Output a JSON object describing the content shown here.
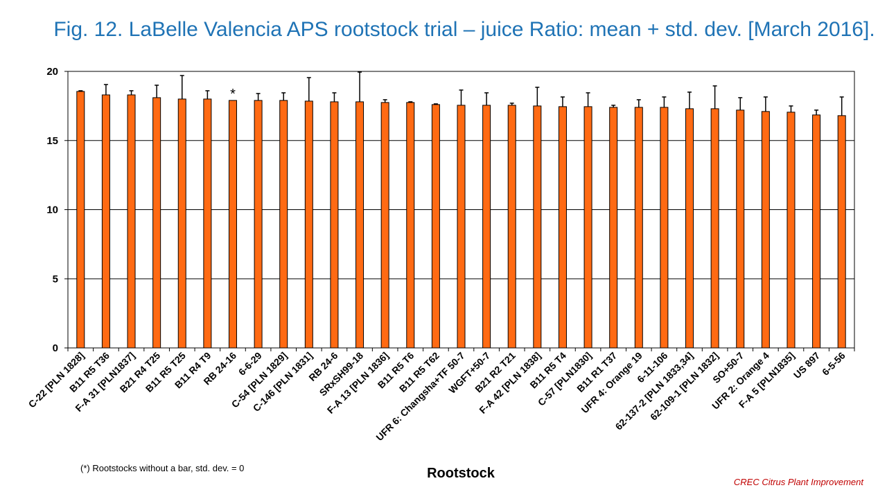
{
  "chart_data": {
    "type": "bar",
    "title": "Fig. 12. LaBelle Valencia APS rootstock trial – juice Ratio: mean + std. dev. [March 2016].",
    "xlabel": "Rootstock",
    "ylabel": "",
    "ylim": [
      0,
      20
    ],
    "yticks": [
      0,
      5,
      10,
      15,
      20
    ],
    "grid": true,
    "bar_color": "#FF6A13",
    "categories": [
      "C-22 [PLN 1828]",
      "B11 R5 T36",
      "F-A 31 [PLN1837]",
      "B21 R4 T25",
      "B11 R5 T25",
      "B11 R4 T9",
      "RB 24-16",
      "6-6-29",
      "C-54 [PLN 1829]",
      "C-146 [PLN 1831]",
      "RB 24-6",
      "SRxSH99-18",
      "F-A 13 [PLN 1836]",
      "B11 R5 T6",
      "B11 R5 T62",
      "UFR 6: Changsha+TF 50-7",
      "WGFT+50-7",
      "B21 R2 T21",
      "F-A 42 [PLN 1838]",
      "B11 R5 T4",
      "C-57 [PLN1830]",
      "B11 R1 T37",
      "UFR 4: Orange 19",
      "6-11-106",
      "62-137-2 [PLN 1833,34]",
      "62-109-1 [PLN 1832]",
      "SO+50-7",
      "UFR 2: Orange 4",
      "F-A 5 [PLN1835]",
      "US 897",
      "6-5-56"
    ],
    "series": [
      {
        "values": [
          18.55,
          18.3,
          18.3,
          18.1,
          18.0,
          18.0,
          17.9,
          17.9,
          17.9,
          17.85,
          17.8,
          17.8,
          17.75,
          17.75,
          17.6,
          17.55,
          17.55,
          17.55,
          17.5,
          17.45,
          17.45,
          17.4,
          17.4,
          17.4,
          17.3,
          17.3,
          17.2,
          17.1,
          17.05,
          16.85,
          16.8
        ],
        "std_dev": [
          0.05,
          0.75,
          0.3,
          0.9,
          1.7,
          0.6,
          0,
          0.5,
          0.55,
          1.7,
          0.65,
          2.15,
          0.2,
          0.05,
          0.05,
          1.1,
          0.9,
          0.15,
          1.35,
          0.7,
          1.0,
          0.15,
          0.55,
          0.75,
          1.2,
          1.65,
          0.9,
          1.05,
          0.45,
          0.35,
          1.35
        ]
      }
    ],
    "annotations": [
      {
        "category": "RB 24-16",
        "text": "*"
      }
    ]
  },
  "footnote": "(*) Rootstocks without  a bar, std. dev. = 0",
  "credit": "CREC Citrus Plant Improvement"
}
